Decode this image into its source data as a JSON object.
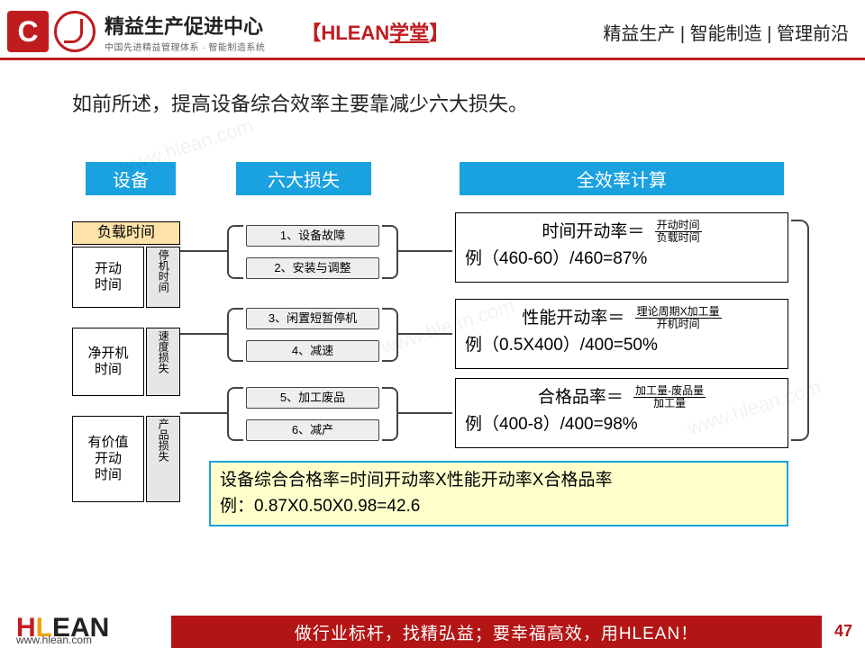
{
  "header": {
    "logo_letter": "C",
    "org_title": "精益生产促进中心",
    "org_sub": "中国先进精益管理体系 · 智能制造系统",
    "brand_part1": "【HLEAN",
    "brand_part2": "学堂",
    "brand_part3": "】",
    "tagline": "精益生产 | 智能制造 | 管理前沿"
  },
  "intro": "如前所述，提高设备综合效率主要靠减少六大损失。",
  "columns": {
    "c1": "设备",
    "c2": "六大损失",
    "c3": "全效率计算"
  },
  "equipment": {
    "load_time": "负载时间",
    "bars": [
      {
        "label": "开动\n时间",
        "loss": "停机时间"
      },
      {
        "label": "净开机\n时间",
        "loss": "速度损失"
      },
      {
        "label": "有价值\n开动\n时间",
        "loss": "产品损失"
      }
    ],
    "colors": {
      "load_bg": "#ffe2a8",
      "loss_bg": "#e6e6e6"
    }
  },
  "six_losses": [
    "1、设备故障",
    "2、安装与调整",
    "3、闲置短暂停机",
    "4、减速",
    "5、加工废品",
    "6、减产"
  ],
  "formulas": [
    {
      "name": "时间开动率＝",
      "num": "开动时间",
      "den": "负载时间",
      "example": "例（460-60）/460=87%"
    },
    {
      "name": "性能开动率＝",
      "num": "理论周期X加工量",
      "den": "开机时间",
      "example": "例（0.5X400）/400=50%"
    },
    {
      "name": "合格品率＝",
      "num": "加工量-废品量",
      "den": "加工量",
      "example": "例（400-8）/400=98%"
    }
  ],
  "summary": {
    "line1": "设备综合合格率=时间开动率X性能开动率X合格品率",
    "line2": "例：0.87X0.50X0.98=42.6",
    "border_color": "#1aa1e0",
    "bg_color": "#ffffcc"
  },
  "footer": {
    "logo_h": "H",
    "logo_mid": "L",
    "logo_tail": "EAN",
    "url": "www.hlean.com",
    "slogan": "做行业标杆，找精弘益；要幸福高效，用HLEAN！",
    "page": "47",
    "bar_bg": "#b31515"
  },
  "accent": {
    "blue": "#1aa1e0",
    "red": "#c01c20"
  },
  "watermark": "www.hlean.com"
}
